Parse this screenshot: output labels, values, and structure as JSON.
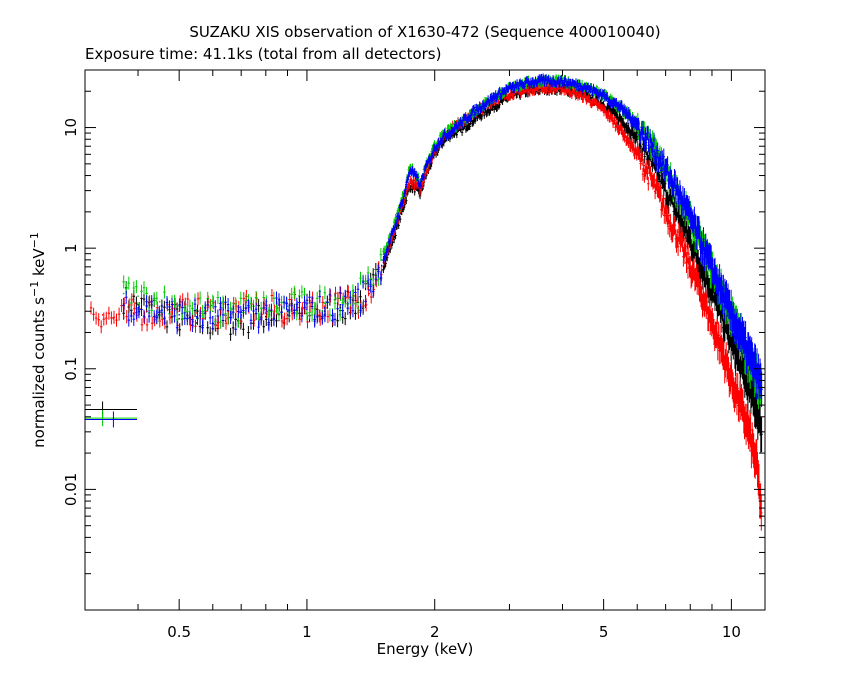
{
  "chart_data": {
    "type": "scatter",
    "title": "SUZAKU XIS observation of X1630-472 (Sequence 400010040)",
    "subtitle": "Exposure time: 41.1ks (total from all detectors)",
    "xlabel": "Energy (keV)",
    "ylabel_main": "normalized counts s",
    "ylabel_sup1": "−1",
    "ylabel_mid": " keV",
    "ylabel_sup2": "−1",
    "xscale": "log",
    "yscale": "log",
    "xlim": [
      0.3,
      12
    ],
    "ylim": [
      0.001,
      30
    ],
    "x_ticks": [
      {
        "value": 0.5,
        "label": "0.5"
      },
      {
        "value": 1,
        "label": "1"
      },
      {
        "value": 2,
        "label": "2"
      },
      {
        "value": 5,
        "label": "5"
      },
      {
        "value": 10,
        "label": "10"
      }
    ],
    "y_ticks": [
      {
        "value": 0.01,
        "label": "0.01"
      },
      {
        "value": 0.1,
        "label": "0.1"
      },
      {
        "value": 1,
        "label": "1"
      },
      {
        "value": 10,
        "label": "10"
      }
    ],
    "grid": false,
    "legend": "none",
    "series": [
      {
        "color": "#ff0000",
        "x": [
          0.31,
          0.33,
          0.35,
          0.37,
          0.39,
          0.42,
          0.45,
          0.5,
          0.55,
          0.6,
          0.7,
          0.8,
          0.9,
          1.0,
          1.1,
          1.2,
          1.3,
          1.4,
          1.5,
          1.6,
          1.7,
          1.75,
          1.8,
          1.85,
          1.9,
          2.0,
          2.1,
          2.2,
          2.3,
          2.5,
          2.8,
          3.0,
          3.3,
          3.6,
          4.0,
          4.5,
          5.0,
          5.5,
          6.0,
          6.5,
          7.0,
          7.5,
          8.0,
          8.5,
          9.0,
          9.5,
          10.0,
          10.5,
          11.0,
          11.5,
          11.8
        ],
        "y": [
          0.3,
          0.28,
          0.26,
          0.27,
          0.29,
          0.3,
          0.29,
          0.3,
          0.29,
          0.3,
          0.3,
          0.31,
          0.31,
          0.32,
          0.33,
          0.34,
          0.37,
          0.45,
          0.7,
          1.3,
          2.6,
          3.6,
          3.4,
          3.0,
          4.2,
          6.5,
          8.5,
          10.0,
          11.0,
          13.5,
          17.5,
          19.0,
          20.5,
          21.5,
          21.0,
          18.0,
          14.0,
          9.5,
          6.0,
          3.6,
          2.0,
          1.2,
          0.7,
          0.42,
          0.24,
          0.14,
          0.08,
          0.05,
          0.03,
          0.015,
          0.006
        ]
      },
      {
        "color": "#000000",
        "x": [
          0.37,
          0.4,
          0.45,
          0.5,
          0.55,
          0.6,
          0.7,
          0.8,
          0.9,
          1.0,
          1.1,
          1.2,
          1.3,
          1.4,
          1.5,
          1.6,
          1.7,
          1.75,
          1.8,
          1.85,
          1.9,
          2.0,
          2.1,
          2.2,
          2.3,
          2.5,
          2.8,
          3.0,
          3.3,
          3.6,
          4.0,
          4.5,
          5.0,
          5.5,
          6.0,
          6.5,
          7.0,
          7.5,
          8.0,
          8.5,
          9.0,
          9.5,
          10.0,
          10.5,
          11.0,
          11.5,
          11.8
        ],
        "y": [
          0.38,
          0.34,
          0.3,
          0.26,
          0.24,
          0.24,
          0.25,
          0.27,
          0.28,
          0.29,
          0.3,
          0.32,
          0.35,
          0.42,
          0.65,
          1.2,
          2.4,
          3.3,
          3.1,
          2.8,
          3.9,
          6.0,
          7.8,
          9.0,
          9.5,
          12.0,
          15.5,
          18.0,
          20.0,
          21.0,
          21.0,
          19.0,
          15.5,
          11.5,
          8.0,
          5.0,
          3.0,
          1.9,
          1.15,
          0.7,
          0.45,
          0.28,
          0.17,
          0.11,
          0.07,
          0.045,
          0.03
        ]
      },
      {
        "color": "#00cc00",
        "x": [
          0.37,
          0.4,
          0.45,
          0.5,
          0.55,
          0.6,
          0.7,
          0.8,
          0.9,
          1.0,
          1.1,
          1.2,
          1.3,
          1.4,
          1.5,
          1.6,
          1.7,
          1.75,
          1.8,
          1.85,
          1.9,
          2.0,
          2.1,
          2.2,
          2.3,
          2.5,
          2.8,
          3.0,
          3.3,
          3.6,
          4.0,
          4.5,
          5.0,
          5.5,
          6.0,
          6.5,
          7.0,
          7.5,
          8.0,
          8.5,
          9.0,
          9.5,
          10.0,
          10.5,
          11.0,
          11.5,
          11.8
        ],
        "y": [
          0.42,
          0.4,
          0.36,
          0.33,
          0.31,
          0.3,
          0.31,
          0.32,
          0.33,
          0.34,
          0.35,
          0.37,
          0.4,
          0.5,
          0.8,
          1.5,
          3.0,
          4.8,
          4.2,
          3.4,
          4.6,
          7.0,
          8.8,
          9.8,
          11.0,
          14.0,
          18.5,
          21.0,
          23.5,
          24.5,
          24.0,
          22.0,
          18.5,
          14.5,
          10.5,
          7.0,
          4.4,
          2.8,
          1.7,
          1.05,
          0.65,
          0.42,
          0.27,
          0.18,
          0.12,
          0.08,
          0.07
        ]
      },
      {
        "color": "#0000ff",
        "x": [
          0.37,
          0.4,
          0.45,
          0.5,
          0.55,
          0.6,
          0.7,
          0.8,
          0.9,
          1.0,
          1.1,
          1.2,
          1.3,
          1.4,
          1.5,
          1.6,
          1.7,
          1.75,
          1.8,
          1.85,
          1.9,
          2.0,
          2.1,
          2.2,
          2.3,
          2.5,
          2.8,
          3.0,
          3.3,
          3.6,
          4.0,
          4.5,
          5.0,
          5.5,
          6.0,
          6.5,
          7.0,
          7.5,
          8.0,
          8.5,
          9.0,
          9.5,
          10.0,
          10.5,
          11.0,
          11.5,
          11.8
        ],
        "y": [
          0.34,
          0.32,
          0.3,
          0.28,
          0.27,
          0.27,
          0.28,
          0.29,
          0.3,
          0.31,
          0.32,
          0.34,
          0.37,
          0.45,
          0.72,
          1.4,
          2.9,
          4.5,
          4.0,
          3.3,
          4.5,
          6.8,
          8.5,
          9.5,
          10.8,
          14.0,
          18.5,
          21.0,
          23.5,
          24.5,
          24.0,
          22.0,
          18.5,
          14.5,
          10.5,
          7.0,
          4.5,
          2.9,
          1.8,
          1.1,
          0.68,
          0.43,
          0.28,
          0.19,
          0.13,
          0.09,
          0.07
        ]
      }
    ],
    "low_energy_points": [
      {
        "color": "#000000",
        "x": 0.33,
        "y": 0.046
      },
      {
        "color": "#00cc00",
        "x": 0.33,
        "y": 0.039
      },
      {
        "color": "#0000ff",
        "x": 0.35,
        "y": 0.038
      }
    ]
  }
}
